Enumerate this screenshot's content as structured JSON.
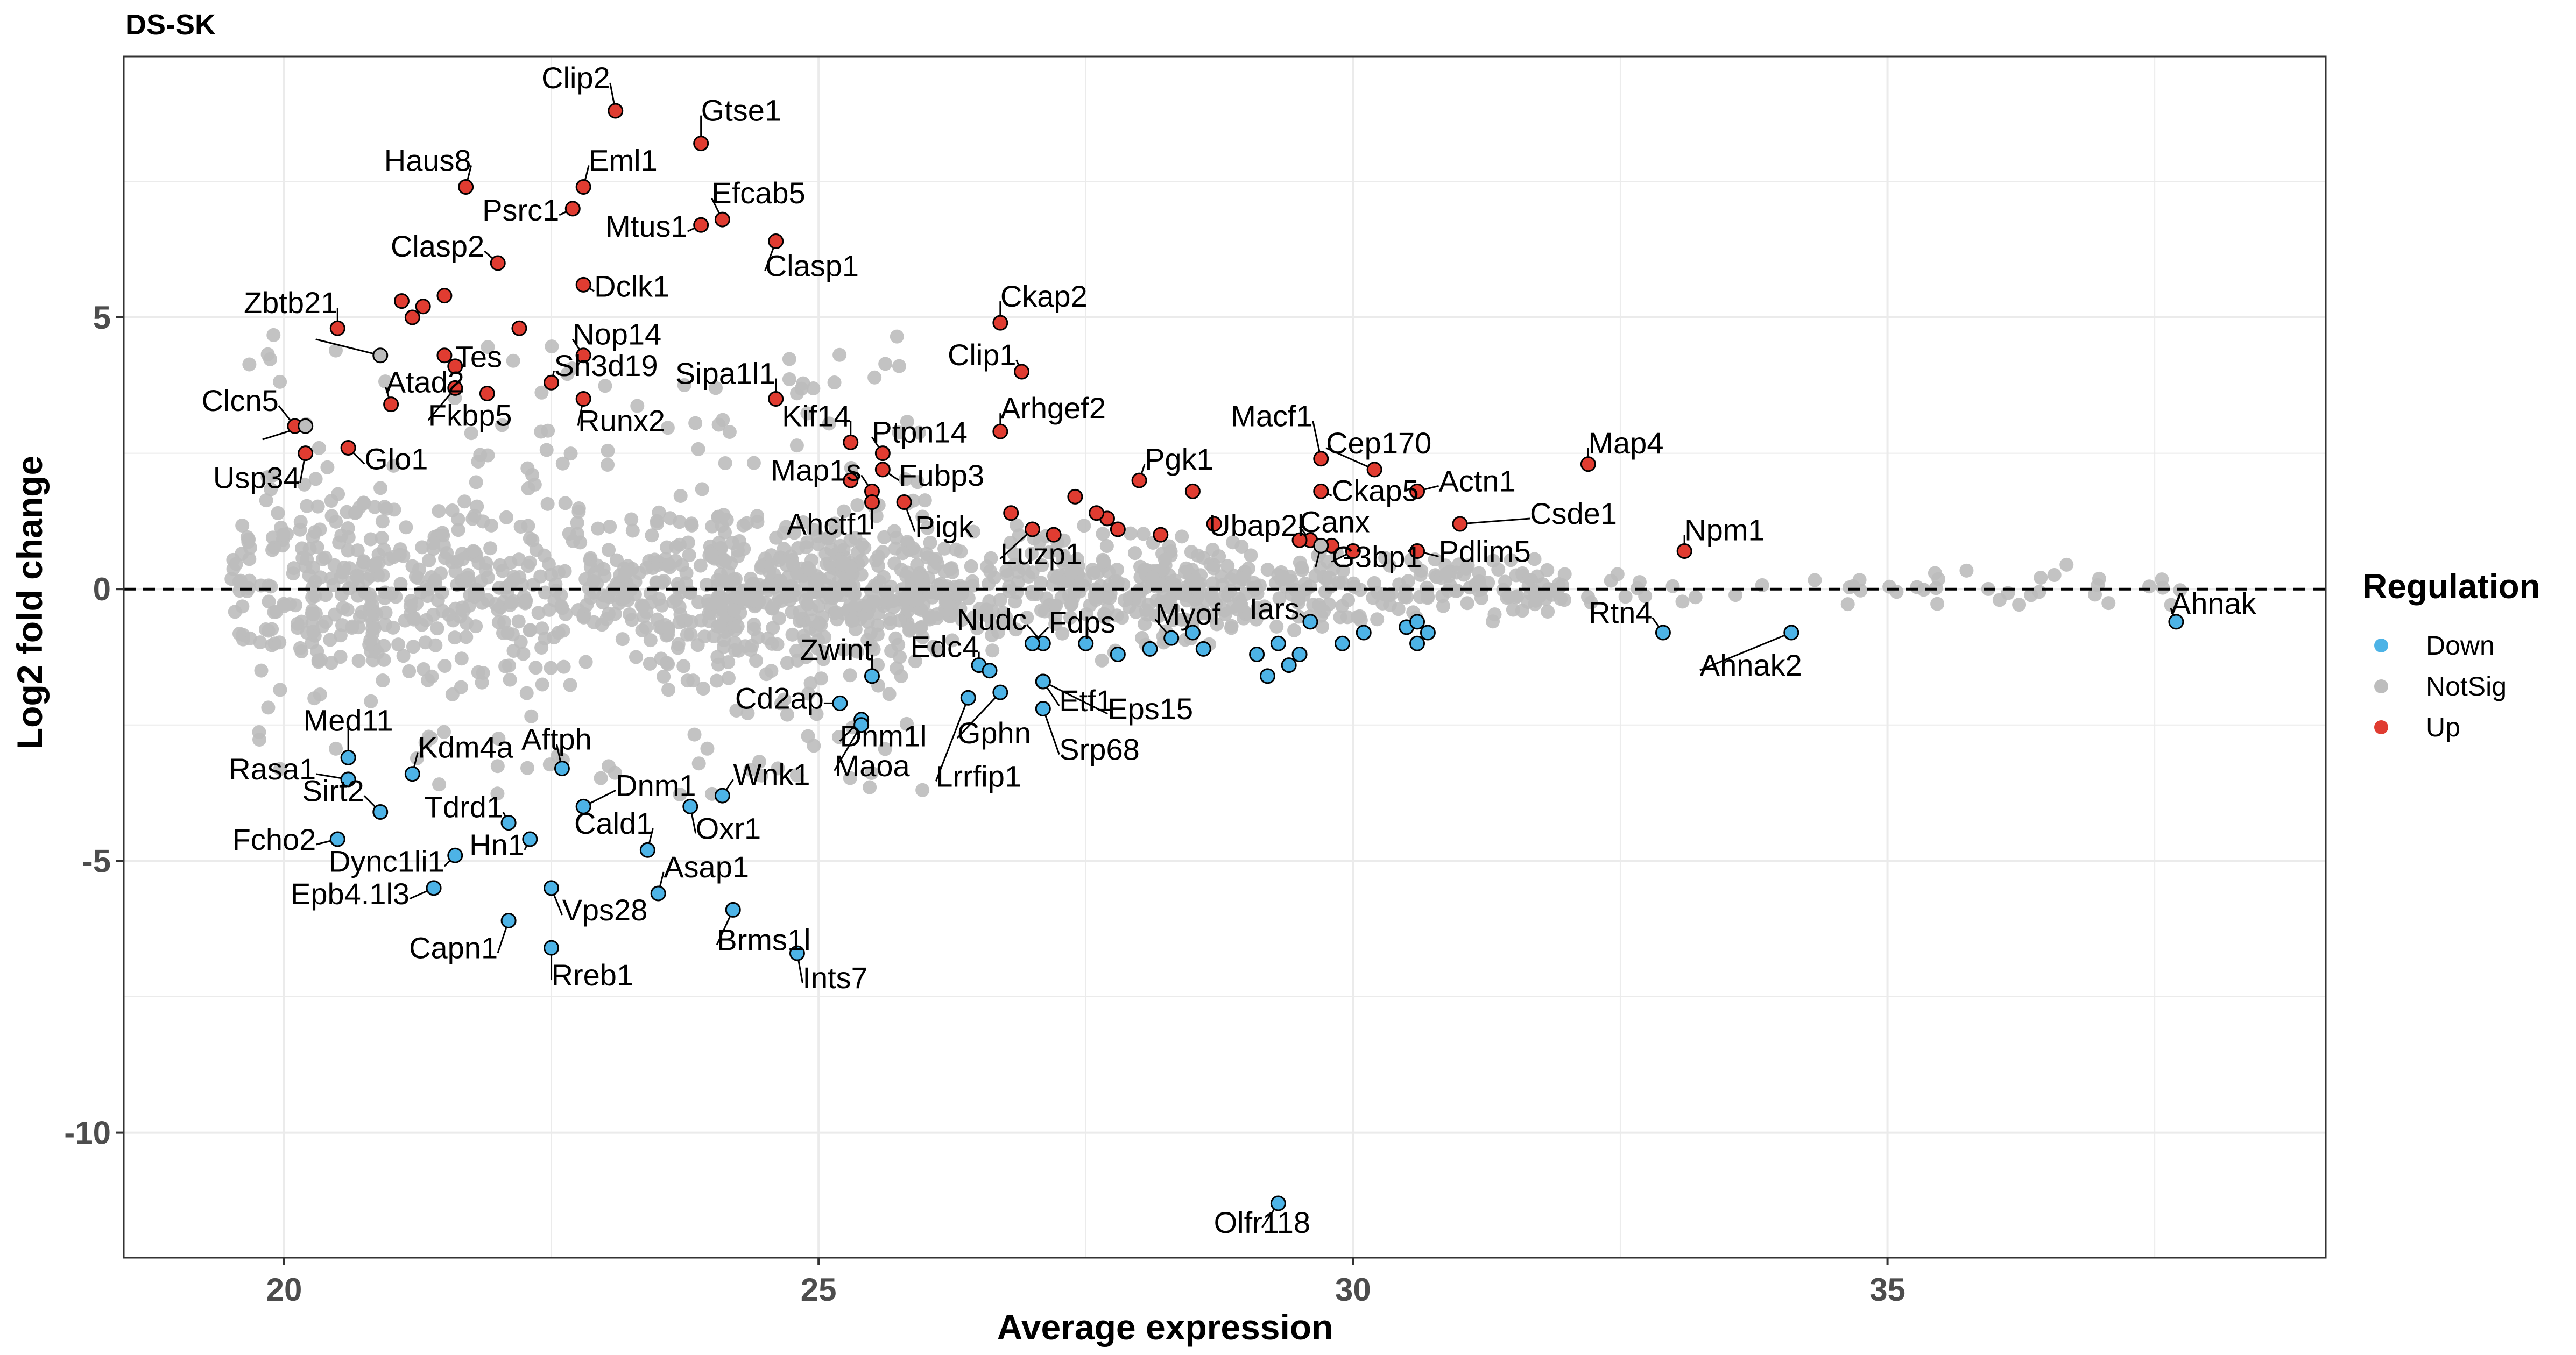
{
  "chart_data": {
    "type": "scatter",
    "title": "DS-SK",
    "xlabel": "Average expression",
    "ylabel": "Log2 fold change",
    "xlim": [
      18.5,
      39.1
    ],
    "ylim": [
      -12.3,
      9.8
    ],
    "xticks": [
      20,
      25,
      30,
      35
    ],
    "yticks": [
      -10,
      -5,
      0,
      5
    ],
    "grid": true,
    "reference_line": {
      "y": 0,
      "style": "dashed"
    },
    "legend": {
      "title": "Regulation",
      "position": "right",
      "entries": [
        {
          "name": "Down",
          "color": "#4db3e6"
        },
        {
          "name": "NotSig",
          "color": "#bdbdbd"
        },
        {
          "name": "Up",
          "color": "#e03c31"
        }
      ]
    },
    "notsig_seed": 73,
    "notsig_count": 1600,
    "up": [
      {
        "label": "Clip2",
        "x": 23.1,
        "y": 8.8
      },
      {
        "label": "Gtse1",
        "x": 23.9,
        "y": 8.2
      },
      {
        "label": "Haus8",
        "x": 21.7,
        "y": 7.4
      },
      {
        "label": "Eml1",
        "x": 22.8,
        "y": 7.4
      },
      {
        "label": "Psrc1",
        "x": 22.7,
        "y": 7.0
      },
      {
        "label": "Efcab5",
        "x": 24.1,
        "y": 6.8
      },
      {
        "label": "Mtus1",
        "x": 23.9,
        "y": 6.7
      },
      {
        "label": "Clasp1",
        "x": 24.6,
        "y": 6.4
      },
      {
        "label": "Clasp2",
        "x": 22.0,
        "y": 6.0
      },
      {
        "label": "Dclk1",
        "x": 22.8,
        "y": 5.6
      },
      {
        "label": "Zbtb21",
        "x": 20.5,
        "y": 4.8
      },
      {
        "label": "Tes",
        "x": 21.5,
        "y": 4.3
      },
      {
        "label": "Nop14",
        "x": 22.8,
        "y": 4.3
      },
      {
        "label": "Ckap2",
        "x": 26.7,
        "y": 4.9
      },
      {
        "label": "Clip1",
        "x": 26.9,
        "y": 4.0
      },
      {
        "label": "Atad2",
        "x": 21.0,
        "y": 3.4
      },
      {
        "label": "Sh3d19",
        "x": 22.5,
        "y": 3.8
      },
      {
        "label": "Fkbp5",
        "x": 21.6,
        "y": 3.7
      },
      {
        "label": "Runx2",
        "x": 22.8,
        "y": 3.5
      },
      {
        "label": "Sipa1l1",
        "x": 24.6,
        "y": 3.5
      },
      {
        "label": "Clcn5",
        "x": 20.1,
        "y": 3.0
      },
      {
        "label": "Glo1",
        "x": 20.6,
        "y": 2.6
      },
      {
        "label": "Usp34",
        "x": 20.2,
        "y": 2.5
      },
      {
        "label": "Arhgef2",
        "x": 26.7,
        "y": 2.9
      },
      {
        "label": "Kif14",
        "x": 25.3,
        "y": 2.7
      },
      {
        "label": "Ptpn14",
        "x": 25.6,
        "y": 2.5
      },
      {
        "label": "Macf1",
        "x": 29.7,
        "y": 2.4
      },
      {
        "label": "Map4",
        "x": 32.2,
        "y": 2.3
      },
      {
        "label": "Cep170",
        "x": 30.2,
        "y": 2.2
      },
      {
        "label": "Fubp3",
        "x": 25.6,
        "y": 2.2
      },
      {
        "label": "Pgk1",
        "x": 28.0,
        "y": 2.0
      },
      {
        "label": "Map1s",
        "x": 25.5,
        "y": 1.8
      },
      {
        "label": "Ckap5",
        "x": 29.7,
        "y": 1.8
      },
      {
        "label": "Actn1",
        "x": 30.6,
        "y": 1.8
      },
      {
        "label": "Ahctf1",
        "x": 25.5,
        "y": 1.6
      },
      {
        "label": "Pigk",
        "x": 25.8,
        "y": 1.6
      },
      {
        "label": "Csde1",
        "x": 31.0,
        "y": 1.2
      },
      {
        "label": "Ubap2l",
        "x": 28.7,
        "y": 1.2
      },
      {
        "label": "Canx",
        "x": 29.6,
        "y": 0.9
      },
      {
        "label": "Luzp1",
        "x": 27.0,
        "y": 1.1
      },
      {
        "label": "Npm1",
        "x": 33.1,
        "y": 0.7
      },
      {
        "label": "Pdlim5",
        "x": 30.6,
        "y": 0.7
      },
      {
        "label": "G3bp1",
        "x": 30.0,
        "y": 0.7
      },
      {
        "label": "",
        "x": 21.3,
        "y": 5.2
      },
      {
        "label": "",
        "x": 21.5,
        "y": 5.4
      },
      {
        "label": "",
        "x": 21.2,
        "y": 5.0
      },
      {
        "label": "",
        "x": 21.1,
        "y": 5.3
      },
      {
        "label": "",
        "x": 22.2,
        "y": 4.8
      },
      {
        "label": "",
        "x": 21.6,
        "y": 4.1
      },
      {
        "label": "",
        "x": 21.9,
        "y": 3.6
      },
      {
        "label": "",
        "x": 25.3,
        "y": 2.0
      },
      {
        "label": "",
        "x": 26.8,
        "y": 1.4
      },
      {
        "label": "",
        "x": 27.4,
        "y": 1.7
      },
      {
        "label": "",
        "x": 27.7,
        "y": 1.3
      },
      {
        "label": "",
        "x": 27.8,
        "y": 1.1
      },
      {
        "label": "",
        "x": 28.5,
        "y": 1.8
      },
      {
        "label": "",
        "x": 27.2,
        "y": 1.0
      },
      {
        "label": "",
        "x": 28.2,
        "y": 1.0
      },
      {
        "label": "",
        "x": 27.6,
        "y": 1.4
      },
      {
        "label": "",
        "x": 29.5,
        "y": 0.9
      },
      {
        "label": "",
        "x": 29.8,
        "y": 0.8
      }
    ],
    "down": [
      {
        "label": "Ahnak",
        "x": 37.7,
        "y": -0.6
      },
      {
        "label": "Rtn4",
        "x": 32.9,
        "y": -0.8
      },
      {
        "label": "Ahnak2",
        "x": 34.1,
        "y": -0.8
      },
      {
        "label": "Nudc",
        "x": 27.1,
        "y": -1.0
      },
      {
        "label": "Fdps",
        "x": 27.0,
        "y": -1.0
      },
      {
        "label": "Myof",
        "x": 28.3,
        "y": -0.9
      },
      {
        "label": "Iars",
        "x": 29.6,
        "y": -0.6
      },
      {
        "label": "Zwint",
        "x": 25.5,
        "y": -1.6
      },
      {
        "label": "Edc4",
        "x": 26.5,
        "y": -1.4
      },
      {
        "label": "Etf1",
        "x": 27.1,
        "y": -1.7
      },
      {
        "label": "Cd2ap",
        "x": 25.2,
        "y": -2.1
      },
      {
        "label": "Dnm1l",
        "x": 25.4,
        "y": -2.4
      },
      {
        "label": "Eps15",
        "x": 27.1,
        "y": -1.7
      },
      {
        "label": "Maoa",
        "x": 25.4,
        "y": -2.5
      },
      {
        "label": "Gphn",
        "x": 26.7,
        "y": -1.9
      },
      {
        "label": "Srp68",
        "x": 27.1,
        "y": -2.2
      },
      {
        "label": "Lrrfip1",
        "x": 26.4,
        "y": -2.0
      },
      {
        "label": "Med11",
        "x": 20.6,
        "y": -3.1
      },
      {
        "label": "Rasa1",
        "x": 20.6,
        "y": -3.5
      },
      {
        "label": "Kdm4a",
        "x": 21.2,
        "y": -3.4
      },
      {
        "label": "Aftph",
        "x": 22.6,
        "y": -3.3
      },
      {
        "label": "Sirt2",
        "x": 20.9,
        "y": -4.1
      },
      {
        "label": "Tdrd1",
        "x": 22.1,
        "y": -4.3
      },
      {
        "label": "Dnm1",
        "x": 22.8,
        "y": -4.0
      },
      {
        "label": "Wnk1",
        "x": 24.1,
        "y": -3.8
      },
      {
        "label": "Oxr1",
        "x": 23.8,
        "y": -4.0
      },
      {
        "label": "Cald1",
        "x": 23.4,
        "y": -4.8
      },
      {
        "label": "Fcho2",
        "x": 20.5,
        "y": -4.6
      },
      {
        "label": "Dync1li1",
        "x": 21.6,
        "y": -4.9
      },
      {
        "label": "Hn1",
        "x": 22.3,
        "y": -4.6
      },
      {
        "label": "Asap1",
        "x": 23.5,
        "y": -5.6
      },
      {
        "label": "Epb4.1l3",
        "x": 21.4,
        "y": -5.5
      },
      {
        "label": "Vps28",
        "x": 22.5,
        "y": -5.5
      },
      {
        "label": "Capn1",
        "x": 22.1,
        "y": -6.1
      },
      {
        "label": "Brms1l",
        "x": 24.2,
        "y": -5.9
      },
      {
        "label": "Rreb1",
        "x": 22.5,
        "y": -6.6
      },
      {
        "label": "Ints7",
        "x": 24.8,
        "y": -6.7
      },
      {
        "label": "Olfr118",
        "x": 29.3,
        "y": -11.3
      },
      {
        "label": "",
        "x": 28.1,
        "y": -1.1
      },
      {
        "label": "",
        "x": 28.6,
        "y": -1.1
      },
      {
        "label": "",
        "x": 29.1,
        "y": -1.2
      },
      {
        "label": "",
        "x": 29.3,
        "y": -1.0
      },
      {
        "label": "",
        "x": 29.4,
        "y": -1.4
      },
      {
        "label": "",
        "x": 29.2,
        "y": -1.6
      },
      {
        "label": "",
        "x": 29.9,
        "y": -1.0
      },
      {
        "label": "",
        "x": 30.1,
        "y": -0.8
      },
      {
        "label": "",
        "x": 30.5,
        "y": -0.7
      },
      {
        "label": "",
        "x": 30.6,
        "y": -1.0
      },
      {
        "label": "",
        "x": 30.7,
        "y": -0.8
      },
      {
        "label": "",
        "x": 30.6,
        "y": -0.6
      },
      {
        "label": "",
        "x": 28.5,
        "y": -0.8
      },
      {
        "label": "",
        "x": 27.8,
        "y": -1.2
      },
      {
        "label": "",
        "x": 27.5,
        "y": -1.0
      },
      {
        "label": "",
        "x": 26.6,
        "y": -1.5
      },
      {
        "label": "",
        "x": 29.5,
        "y": -1.2
      }
    ]
  }
}
